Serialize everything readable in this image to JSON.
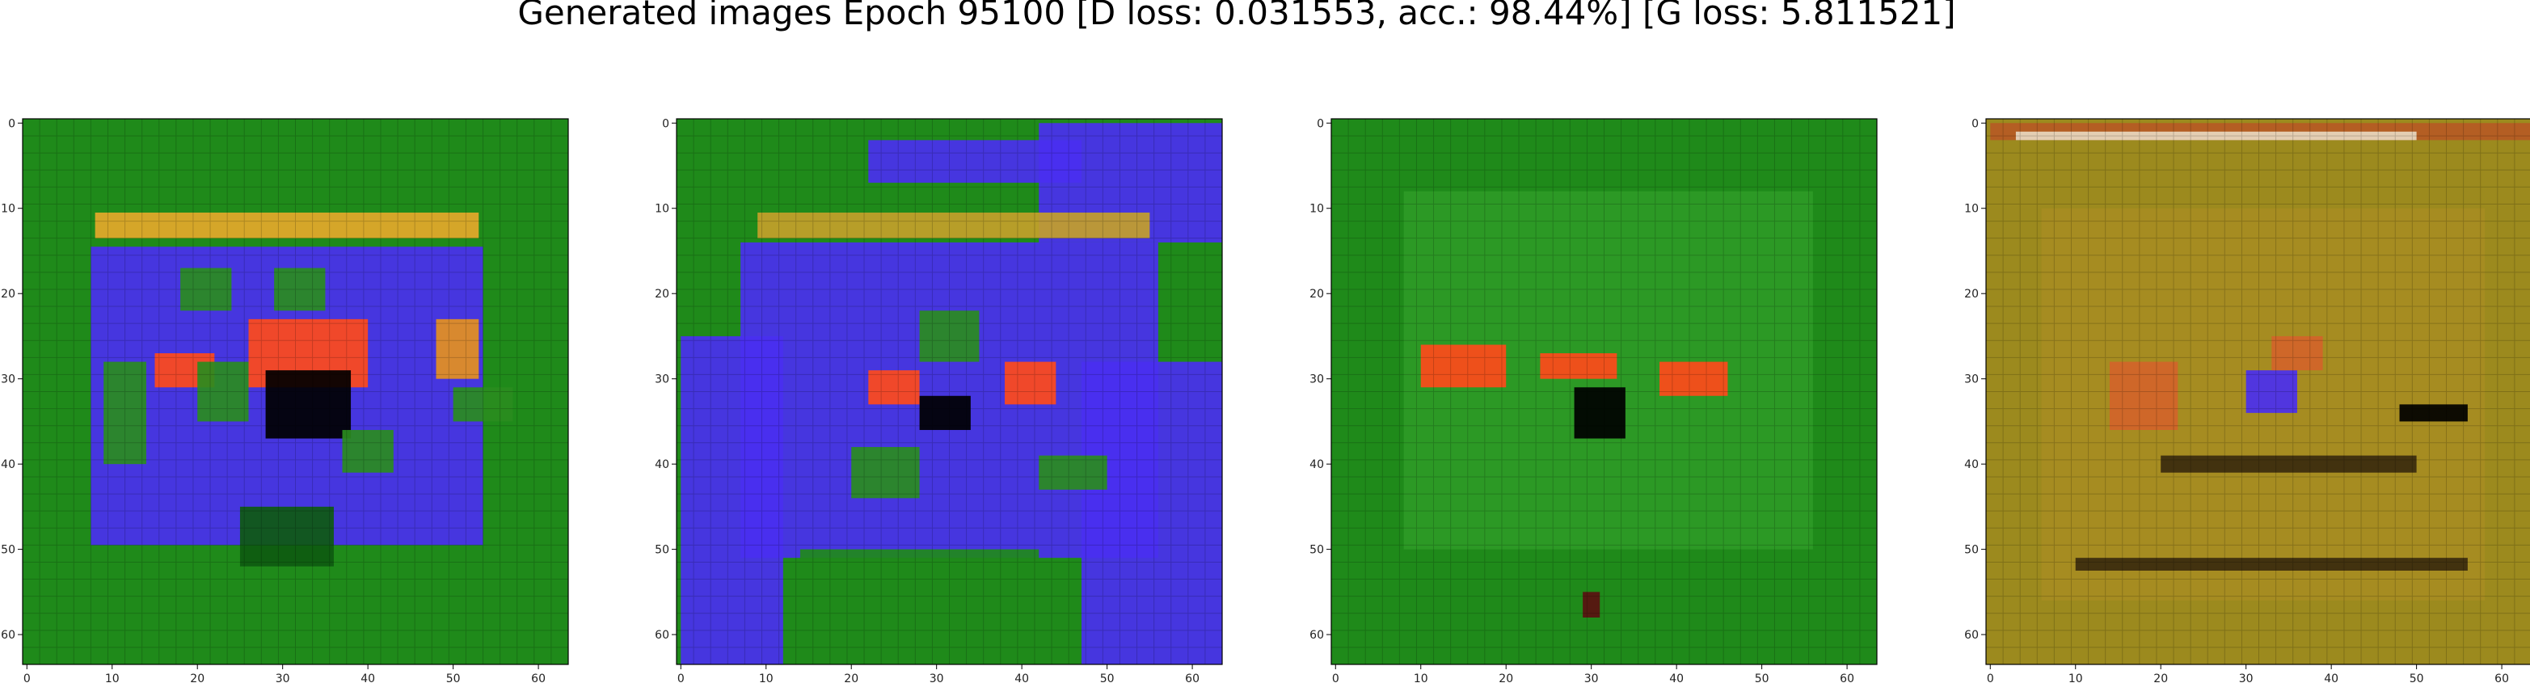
{
  "title": "Generated images Epoch 95100 [D loss: 0.031553, acc.: 98.44%] [G loss: 5.811521]",
  "chart_data": {
    "type": "heatmap",
    "title": "Generated images Epoch 95100 [D loss: 0.031553, acc.: 98.44%] [G loss: 5.811521]",
    "panels": [
      {
        "xlabel": "",
        "ylabel": "",
        "xlim": [
          -0.5,
          63.5
        ],
        "ylim": [
          63.5,
          -0.5
        ],
        "xticks": [
          0,
          10,
          20,
          30,
          40,
          50,
          60
        ],
        "yticks": [
          0,
          10,
          20,
          30,
          40,
          50,
          60
        ],
        "background": "#1f8a1a",
        "regions": [
          {
            "x": [
              7.5,
              53.5
            ],
            "y": [
              14.5,
              49.5
            ],
            "color": "#4a2ff0"
          },
          {
            "x": [
              8,
              53
            ],
            "y": [
              10.5,
              13.5
            ],
            "color": "#e5a82a"
          },
          {
            "x": [
              18,
              24
            ],
            "y": [
              17,
              22
            ],
            "color": "#2a8c1e"
          },
          {
            "x": [
              29,
              35
            ],
            "y": [
              17,
              22
            ],
            "color": "#2a8c1e"
          },
          {
            "x": [
              50,
              57
            ],
            "y": [
              31,
              35
            ],
            "color": "#2a8c1e"
          },
          {
            "x": [
              26,
              40
            ],
            "y": [
              23,
              31
            ],
            "color": "#ff4a1a"
          },
          {
            "x": [
              15,
              22
            ],
            "y": [
              27,
              31
            ],
            "color": "#ff4a1a"
          },
          {
            "x": [
              28,
              38
            ],
            "y": [
              29,
              37
            ],
            "color": "#000000"
          },
          {
            "x": [
              20,
              26
            ],
            "y": [
              28,
              35
            ],
            "color": "#2a8c1e"
          },
          {
            "x": [
              37,
              43
            ],
            "y": [
              36,
              41
            ],
            "color": "#2a8c1e"
          },
          {
            "x": [
              48,
              53
            ],
            "y": [
              23,
              30
            ],
            "color": "#e59020"
          },
          {
            "x": [
              9,
              14
            ],
            "y": [
              28,
              40
            ],
            "color": "#2a8c1e"
          },
          {
            "x": [
              25,
              36
            ],
            "y": [
              45,
              52
            ],
            "color": "#0e5a10"
          }
        ]
      },
      {
        "xlabel": "",
        "ylabel": "",
        "xlim": [
          -0.5,
          63.5
        ],
        "ylim": [
          63.5,
          -0.5
        ],
        "xticks": [
          0,
          10,
          20,
          30,
          40,
          50,
          60
        ],
        "yticks": [
          0,
          10,
          20,
          30,
          40,
          50,
          60
        ],
        "background": "#1f8a1a",
        "regions": [
          {
            "x": [
              0,
              12
            ],
            "y": [
              25,
              63.5
            ],
            "color": "#4a2ff0"
          },
          {
            "x": [
              7,
              56
            ],
            "y": [
              14,
              51
            ],
            "color": "#4a2ff0"
          },
          {
            "x": [
              22,
              47
            ],
            "y": [
              2,
              7
            ],
            "color": "#4a2ff0"
          },
          {
            "x": [
              42,
              63.5
            ],
            "y": [
              0,
              14
            ],
            "color": "#4a2ff0"
          },
          {
            "x": [
              47,
              63.5
            ],
            "y": [
              28,
              63.5
            ],
            "color": "#4a2ff0"
          },
          {
            "x": [
              9,
              55
            ],
            "y": [
              10.5,
              13.5
            ],
            "color": "#c4a02a"
          },
          {
            "x": [
              28,
              35
            ],
            "y": [
              22,
              28
            ],
            "color": "#2a8c1e"
          },
          {
            "x": [
              38,
              44
            ],
            "y": [
              28,
              33
            ],
            "color": "#ff4a1a"
          },
          {
            "x": [
              22,
              28
            ],
            "y": [
              29,
              33
            ],
            "color": "#ff4a1a"
          },
          {
            "x": [
              28,
              34
            ],
            "y": [
              32,
              36
            ],
            "color": "#000000"
          },
          {
            "x": [
              42,
              50
            ],
            "y": [
              39,
              43
            ],
            "color": "#2a8c1e"
          },
          {
            "x": [
              20,
              28
            ],
            "y": [
              38,
              44
            ],
            "color": "#2a8c1e"
          },
          {
            "x": [
              14,
              42
            ],
            "y": [
              50,
              63.5
            ],
            "color": "#1f8a1a"
          }
        ]
      },
      {
        "xlabel": "",
        "ylabel": "",
        "xlim": [
          -0.5,
          63.5
        ],
        "ylim": [
          63.5,
          -0.5
        ],
        "xticks": [
          0,
          10,
          20,
          30,
          40,
          50,
          60
        ],
        "yticks": [
          0,
          10,
          20,
          30,
          40,
          50,
          60
        ],
        "background": "#1f8a1a",
        "regions": [
          {
            "x": [
              8,
              56
            ],
            "y": [
              8,
              50
            ],
            "color": "#2e9a26"
          },
          {
            "x": [
              10,
              20
            ],
            "y": [
              26,
              31
            ],
            "color": "#ff4a1a"
          },
          {
            "x": [
              24,
              33
            ],
            "y": [
              27,
              30
            ],
            "color": "#ff4a1a"
          },
          {
            "x": [
              38,
              46
            ],
            "y": [
              28,
              32
            ],
            "color": "#ff4a1a"
          },
          {
            "x": [
              28,
              34
            ],
            "y": [
              31,
              37
            ],
            "color": "#000000"
          },
          {
            "x": [
              29,
              31
            ],
            "y": [
              55,
              58
            ],
            "color": "#5a1010"
          }
        ]
      },
      {
        "xlabel": "",
        "ylabel": "",
        "xlim": [
          -0.5,
          63.5
        ],
        "ylim": [
          63.5,
          -0.5
        ],
        "xticks": [
          0,
          10,
          20,
          30,
          40,
          50,
          60
        ],
        "yticks": [
          0,
          10,
          20,
          30,
          40,
          50,
          60
        ],
        "background": "#9c8a1e",
        "regions": [
          {
            "x": [
              0,
              63.5
            ],
            "y": [
              0,
              2
            ],
            "color": "#b65a24"
          },
          {
            "x": [
              3,
              50
            ],
            "y": [
              1,
              2
            ],
            "color": "#e8d8c0"
          },
          {
            "x": [
              6,
              58
            ],
            "y": [
              10,
              56
            ],
            "color": "#a78c22"
          },
          {
            "x": [
              14,
              22
            ],
            "y": [
              28,
              36
            ],
            "color": "#d2642a"
          },
          {
            "x": [
              30,
              36
            ],
            "y": [
              29,
              34
            ],
            "color": "#4a2ff0"
          },
          {
            "x": [
              33,
              39
            ],
            "y": [
              25,
              29
            ],
            "color": "#d2642a"
          },
          {
            "x": [
              48,
              56
            ],
            "y": [
              33,
              35
            ],
            "color": "#000000"
          },
          {
            "x": [
              20,
              50
            ],
            "y": [
              39,
              41
            ],
            "color": "#3a2a0e"
          },
          {
            "x": [
              10,
              56
            ],
            "y": [
              51,
              52.5
            ],
            "color": "#3a2a0e"
          }
        ]
      }
    ]
  }
}
